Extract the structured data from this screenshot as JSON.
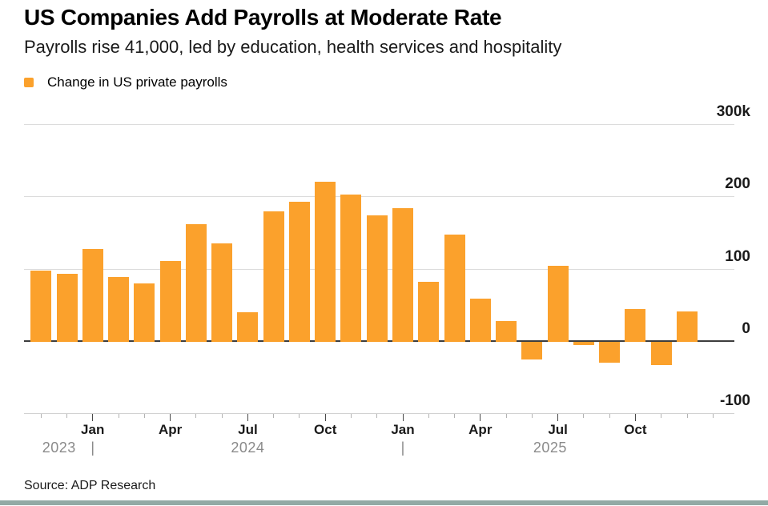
{
  "chart_data": {
    "type": "bar",
    "title": "US Companies Add Payrolls at Moderate Rate",
    "subtitle": "Payrolls rise 41,000, led by education, health services and hospitality",
    "legend_label": "Change in US private payrolls",
    "unit": "thousands of jobs",
    "bar_color": "#FBA12C",
    "grid": "horizontal",
    "legend_position": "top-left",
    "categories": [
      "Nov 2023",
      "Dec 2023",
      "Jan 2024",
      "Feb 2024",
      "Mar 2024",
      "Apr 2024",
      "May 2024",
      "Jun 2024",
      "Jul 2024",
      "Aug 2024",
      "Sep 2024",
      "Oct 2024",
      "Nov 2024",
      "Dec 2024",
      "Jan 2025",
      "Feb 2025",
      "Mar 2025",
      "Apr 2025",
      "May 2025",
      "Jun 2025",
      "Jul 2025",
      "Aug 2025",
      "Sep 2025",
      "Oct 2025",
      "Nov 2025",
      "Dec 2025"
    ],
    "values": [
      98,
      93,
      127,
      89,
      80,
      111,
      162,
      135,
      40,
      179,
      193,
      220,
      203,
      174,
      184,
      82,
      147,
      59,
      28,
      -24,
      104,
      -4,
      -29,
      44,
      -32,
      41
    ],
    "ylim": [
      -100,
      300
    ],
    "yticks": [
      {
        "label": "300k",
        "value": 300
      },
      {
        "label": "200",
        "value": 200
      },
      {
        "label": "100",
        "value": 100
      },
      {
        "label": "0",
        "value": 0
      },
      {
        "label": "-100",
        "value": -100
      }
    ],
    "xticks": [
      {
        "label": "Jan",
        "index": 2
      },
      {
        "label": "Apr",
        "index": 5
      },
      {
        "label": "Jul",
        "index": 8
      },
      {
        "label": "Oct",
        "index": 11
      },
      {
        "label": "Jan",
        "index": 14
      },
      {
        "label": "Apr",
        "index": 17
      },
      {
        "label": "Jul",
        "index": 20
      },
      {
        "label": "Oct",
        "index": 23
      }
    ],
    "years": [
      {
        "label": "2023",
        "at_index": 0.7
      },
      {
        "label": "2024",
        "at_index": 8.0
      },
      {
        "label": "2025",
        "at_index": 19.7
      }
    ],
    "year_separators_at": [
      2,
      14
    ]
  },
  "footer": {
    "source": "Source: ADP Research"
  },
  "colors": {
    "bar": "#FBA12C",
    "gridline": "#dcdcdc",
    "zero_line": "#3d3d3d",
    "axis_label": "#1a1a1a",
    "year_label": "#8a8a8a",
    "footer_rule": "#92aaa5"
  }
}
